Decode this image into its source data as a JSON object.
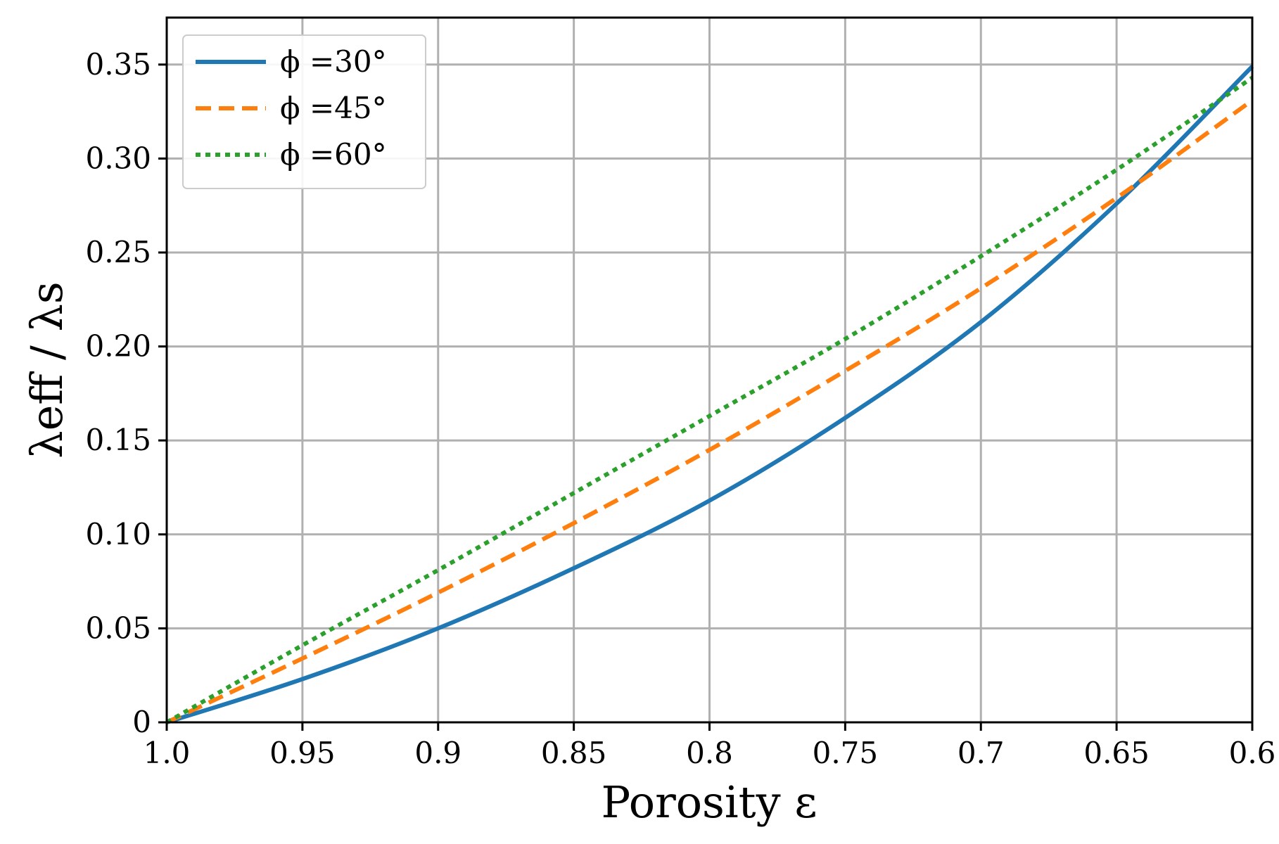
{
  "chart_data": {
    "type": "line",
    "title": "",
    "xlabel": "Porosity ε",
    "ylabel": "λeff / λs",
    "xlim": [
      1.0,
      0.6
    ],
    "ylim": [
      0,
      0.375
    ],
    "x_inverted": true,
    "grid": true,
    "legend_position": "top-left",
    "xticks": [
      1.0,
      0.95,
      0.9,
      0.85,
      0.8,
      0.75,
      0.7,
      0.65,
      0.6
    ],
    "xtick_labels": [
      "1.0",
      "0.95",
      "0.9",
      "0.85",
      "0.8",
      "0.75",
      "0.7",
      "0.65",
      "0.6"
    ],
    "yticks": [
      0,
      0.05,
      0.1,
      0.15,
      0.2,
      0.25,
      0.3,
      0.35
    ],
    "ytick_labels": [
      "0",
      "0.05",
      "0.10",
      "0.15",
      "0.20",
      "0.25",
      "0.30",
      "0.35"
    ],
    "x": [
      1.0,
      0.95,
      0.9,
      0.85,
      0.8,
      0.75,
      0.7,
      0.65,
      0.6
    ],
    "series": [
      {
        "name": "ϕ =30°",
        "color": "#1f77b4",
        "style": "solid",
        "values": [
          0.0,
          0.023,
          0.05,
          0.082,
          0.118,
          0.162,
          0.213,
          0.276,
          0.349
        ]
      },
      {
        "name": "ϕ =45°",
        "color": "#ff7f0e",
        "style": "dashed",
        "values": [
          0.0,
          0.034,
          0.069,
          0.106,
          0.145,
          0.187,
          0.231,
          0.279,
          0.331
        ]
      },
      {
        "name": "ϕ =60°",
        "color": "#2ca02c",
        "style": "dotted",
        "values": [
          0.0,
          0.041,
          0.081,
          0.122,
          0.163,
          0.204,
          0.248,
          0.294,
          0.343
        ]
      }
    ]
  }
}
